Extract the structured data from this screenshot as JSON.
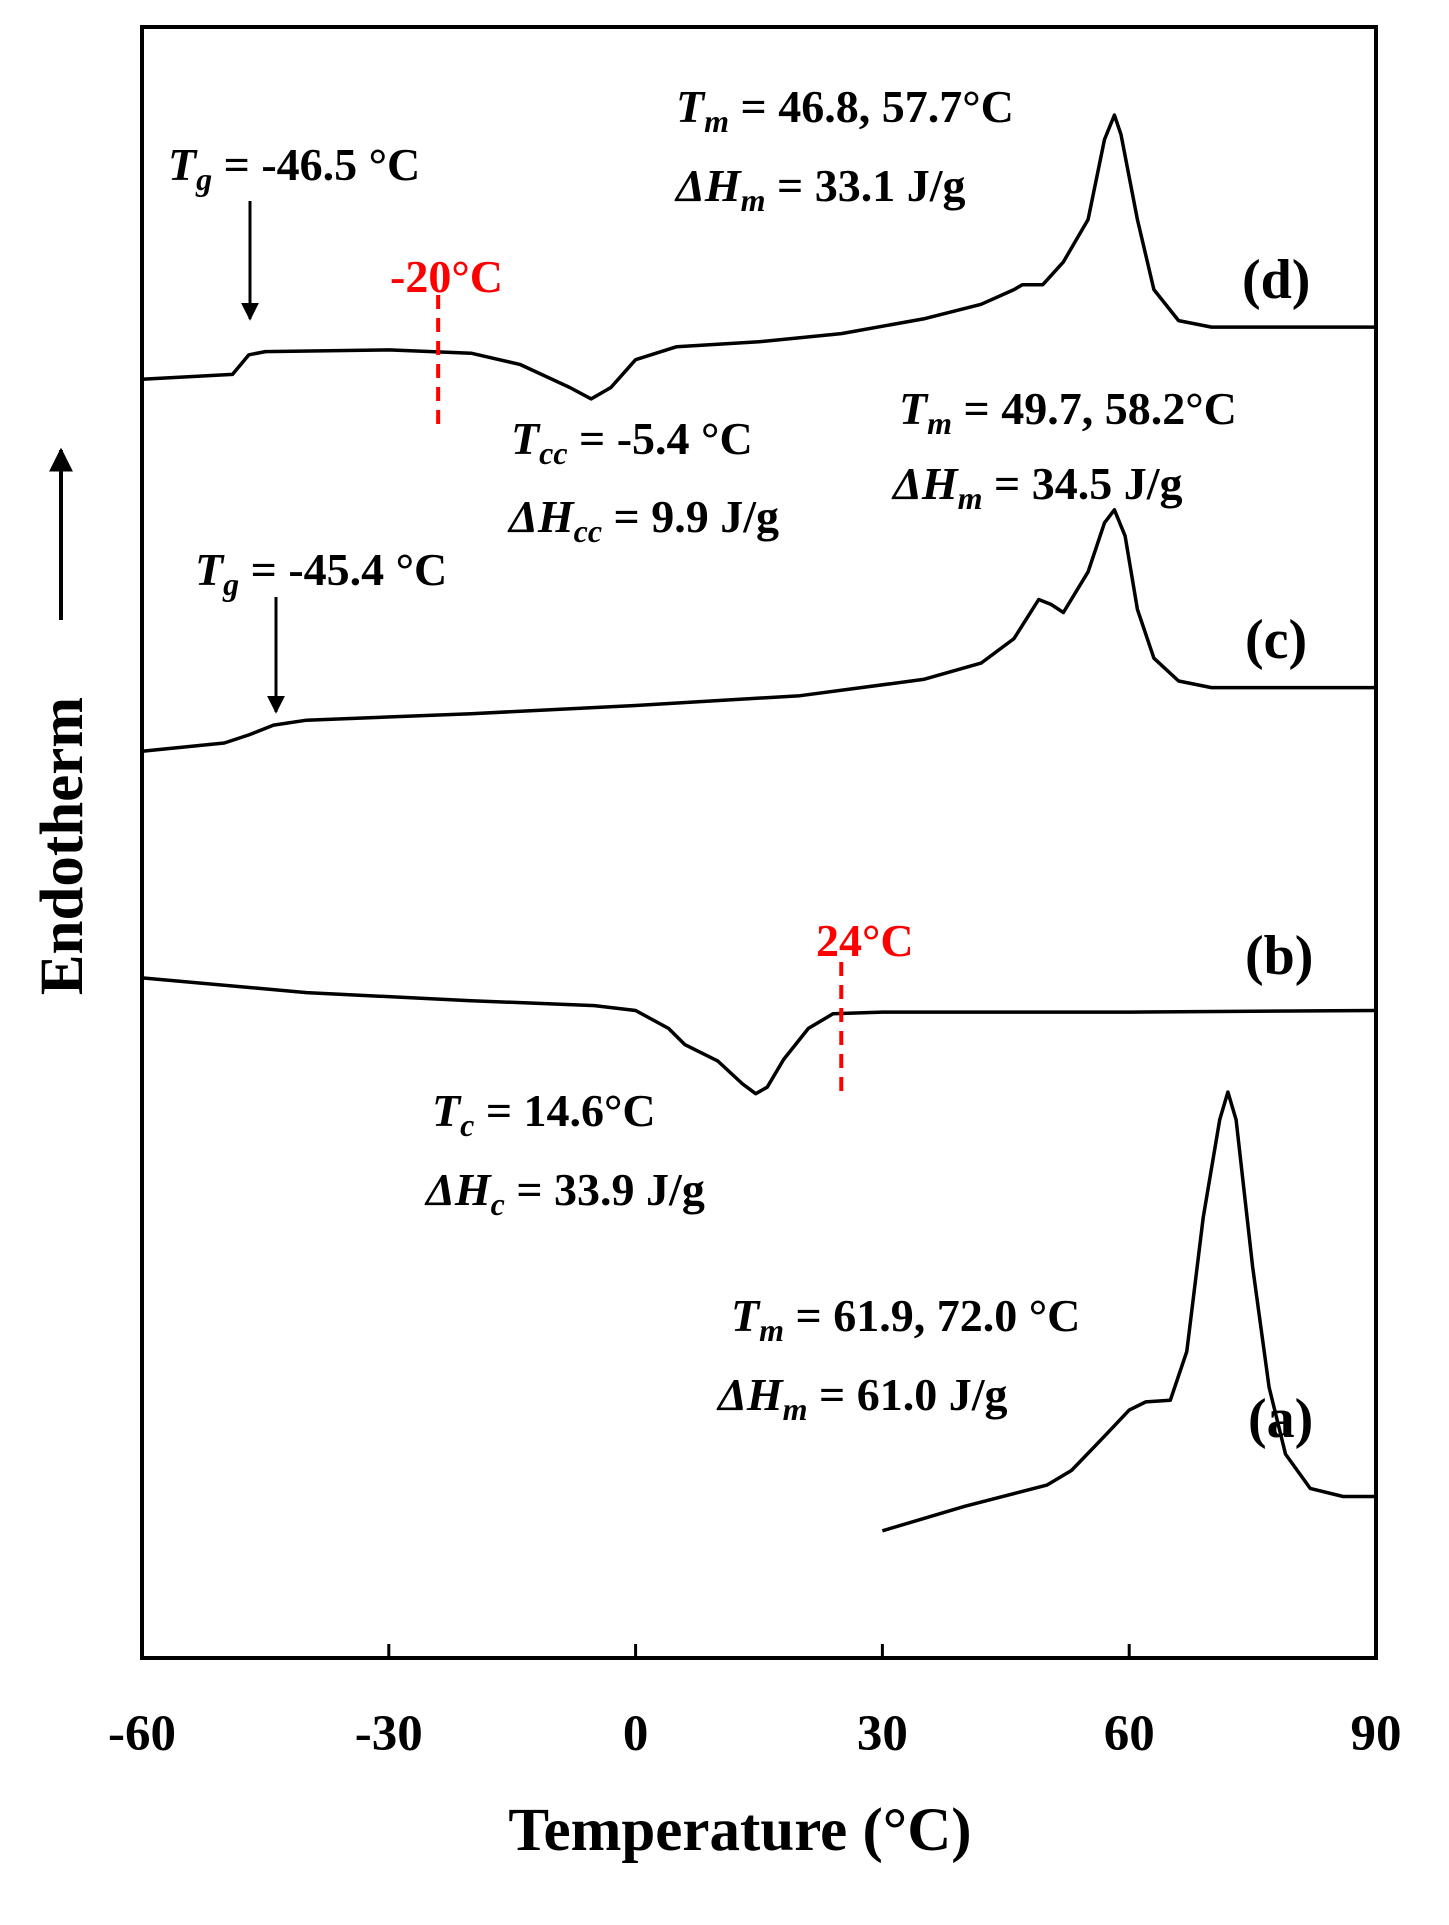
{
  "chart_data": {
    "type": "line",
    "x_label": "Temperature (°C)",
    "y_label": "Endotherm",
    "xlim": [
      -60,
      90
    ],
    "xticks": [
      -60,
      -30,
      0,
      30,
      60,
      90
    ],
    "ylim": [
      0,
      100
    ],
    "series": [
      {
        "name": "(d)",
        "color": "#000000",
        "x": [
          -60,
          -49,
          -47,
          -45,
          -30,
          -20,
          -14,
          -8,
          -5.4,
          -3,
          0,
          5,
          15,
          25,
          35,
          42,
          46,
          47,
          49.5,
          52,
          55,
          57,
          58.2,
          59,
          61,
          63,
          66,
          70,
          90
        ],
        "values": [
          78.4,
          78.7,
          79.9,
          80.1,
          80.2,
          80.0,
          79.3,
          77.9,
          77.2,
          77.9,
          79.6,
          80.4,
          80.7,
          81.2,
          82.1,
          83.0,
          83.9,
          84.2,
          84.2,
          85.6,
          88.2,
          93.1,
          94.6,
          93.4,
          88.2,
          83.9,
          82.0,
          81.6,
          81.6
        ]
      },
      {
        "name": "(c)",
        "color": "#000000",
        "x": [
          -60,
          -50,
          -47,
          -44,
          -40,
          -20,
          0,
          20,
          35,
          42,
          46,
          49,
          50.5,
          52,
          55,
          57,
          58.2,
          59.5,
          61,
          63,
          66,
          70,
          90
        ],
        "values": [
          55.6,
          56.1,
          56.6,
          57.2,
          57.5,
          57.9,
          58.4,
          59.0,
          60.0,
          61.0,
          62.5,
          64.9,
          64.6,
          64.1,
          66.6,
          69.6,
          70.4,
          68.8,
          64.3,
          61.3,
          59.9,
          59.5,
          59.5
        ]
      },
      {
        "name": "(b)",
        "color": "#000000",
        "x": [
          -60,
          -40,
          -20,
          -5,
          0,
          4,
          6,
          10,
          13,
          14.6,
          16,
          18,
          21,
          24,
          30,
          60,
          90
        ],
        "values": [
          41.7,
          40.8,
          40.3,
          40.0,
          39.7,
          38.6,
          37.6,
          36.6,
          35.2,
          34.6,
          35.0,
          36.7,
          38.6,
          39.5,
          39.6,
          39.6,
          39.7
        ]
      },
      {
        "name": "(a)",
        "color": "#000000",
        "x": [
          30,
          40,
          50,
          53,
          57,
          60,
          62,
          65,
          67,
          69,
          71,
          72,
          73,
          75,
          77,
          79,
          82,
          86,
          90
        ],
        "values": [
          7.8,
          9.3,
          10.6,
          11.5,
          13.6,
          15.2,
          15.7,
          15.8,
          18.8,
          27.0,
          33.0,
          34.7,
          33.0,
          24.0,
          16.6,
          12.5,
          10.4,
          9.9,
          9.9
        ]
      }
    ],
    "markers": [
      {
        "label": "-20°C",
        "x": -24,
        "color": "#ff0000"
      },
      {
        "label": "24°C",
        "x": 25,
        "color": "#ff0000"
      }
    ],
    "annotations": [
      {
        "symbol": "T",
        "subscript": "g",
        "text": " = -46.5 °C"
      },
      {
        "symbol": "T",
        "subscript": "m",
        "text": " = 46.8, 57.7°C"
      },
      {
        "symbol": "ΔH",
        "subscript": "m",
        "text": " = 33.1 J/g"
      },
      {
        "symbol": "T",
        "subscript": "cc",
        "text": " = -5.4 °C"
      },
      {
        "symbol": "ΔH",
        "subscript": "cc",
        "text": " = 9.9 J/g"
      },
      {
        "symbol": "T",
        "subscript": "m",
        "text": " = 49.7, 58.2°C"
      },
      {
        "symbol": "ΔH",
        "subscript": "m",
        "text": " = 34.5 J/g"
      },
      {
        "symbol": "T",
        "subscript": "g",
        "text": " = -45.4 °C"
      },
      {
        "symbol": "T",
        "subscript": "c",
        "text": " = 14.6°C"
      },
      {
        "symbol": "ΔH",
        "subscript": "c",
        "text": " = 33.9 J/g"
      },
      {
        "symbol": "T",
        "subscript": "m",
        "text": " = 61.9, 72.0 °C"
      },
      {
        "symbol": "ΔH",
        "subscript": "m",
        "text": " = 61.0 J/g"
      }
    ]
  }
}
